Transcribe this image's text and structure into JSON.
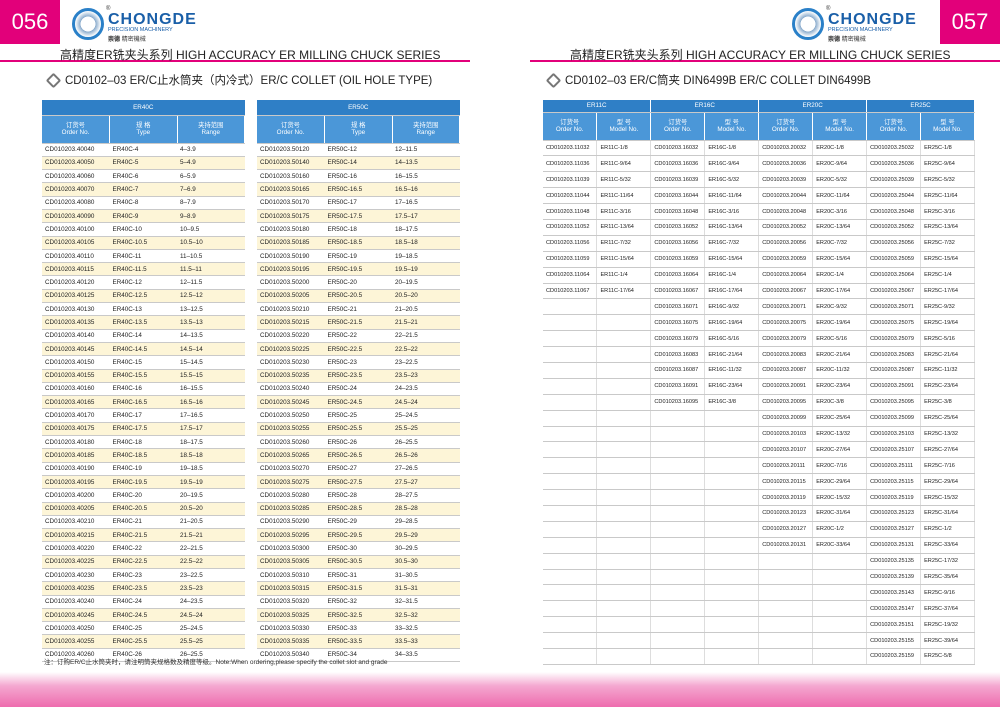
{
  "brand": {
    "name": "CHONGDE",
    "tagline": "PRECISION MACHINERY",
    "zh": "崇德",
    "zh_sub": "精密機械",
    "mark": "®"
  },
  "left": {
    "page_number": "056",
    "header": "高精度ER铣夹头系列  HIGH ACCURACY ER MILLING CHUCK SERIES",
    "section": "CD0102–03 ER/C止水筒夹（内冷式）ER/C COLLET (OIL HOLE TYPE)",
    "columns": [
      {
        "zh": "订货号",
        "en": "Order No."
      },
      {
        "zh": "规 格",
        "en": "Type"
      },
      {
        "zh": "夹持范围",
        "en": "Range"
      }
    ],
    "tables": [
      {
        "title": "ER40C",
        "rows": [
          [
            "CD010203.40040",
            "ER40C-4",
            "4–3.9"
          ],
          [
            "CD010203.40050",
            "ER40C-5",
            "5–4.9"
          ],
          [
            "CD010203.40060",
            "ER40C-6",
            "6–5.9"
          ],
          [
            "CD010203.40070",
            "ER40C-7",
            "7–6.9"
          ],
          [
            "CD010203.40080",
            "ER40C-8",
            "8–7.9"
          ],
          [
            "CD010203.40090",
            "ER40C-9",
            "9–8.9"
          ],
          [
            "CD010203.40100",
            "ER40C-10",
            "10–9.5"
          ],
          [
            "CD010203.40105",
            "ER40C-10.5",
            "10.5–10"
          ],
          [
            "CD010203.40110",
            "ER40C-11",
            "11–10.5"
          ],
          [
            "CD010203.40115",
            "ER40C-11.5",
            "11.5–11"
          ],
          [
            "CD010203.40120",
            "ER40C-12",
            "12–11.5"
          ],
          [
            "CD010203.40125",
            "ER40C-12.5",
            "12.5–12"
          ],
          [
            "CD010203.40130",
            "ER40C-13",
            "13–12.5"
          ],
          [
            "CD010203.40135",
            "ER40C-13.5",
            "13.5–13"
          ],
          [
            "CD010203.40140",
            "ER40C-14",
            "14–13.5"
          ],
          [
            "CD010203.40145",
            "ER40C-14.5",
            "14.5–14"
          ],
          [
            "CD010203.40150",
            "ER40C-15",
            "15–14.5"
          ],
          [
            "CD010203.40155",
            "ER40C-15.5",
            "15.5–15"
          ],
          [
            "CD010203.40160",
            "ER40C-16",
            "16–15.5"
          ],
          [
            "CD010203.40165",
            "ER40C-16.5",
            "16.5–16"
          ],
          [
            "CD010203.40170",
            "ER40C-17",
            "17–16.5"
          ],
          [
            "CD010203.40175",
            "ER40C-17.5",
            "17.5–17"
          ],
          [
            "CD010203.40180",
            "ER40C-18",
            "18–17.5"
          ],
          [
            "CD010203.40185",
            "ER40C-18.5",
            "18.5–18"
          ],
          [
            "CD010203.40190",
            "ER40C-19",
            "19–18.5"
          ],
          [
            "CD010203.40195",
            "ER40C-19.5",
            "19.5–19"
          ],
          [
            "CD010203.40200",
            "ER40C-20",
            "20–19.5"
          ],
          [
            "CD010203.40205",
            "ER40C-20.5",
            "20.5–20"
          ],
          [
            "CD010203.40210",
            "ER40C-21",
            "21–20.5"
          ],
          [
            "CD010203.40215",
            "ER40C-21.5",
            "21.5–21"
          ],
          [
            "CD010203.40220",
            "ER40C-22",
            "22–21.5"
          ],
          [
            "CD010203.40225",
            "ER40C-22.5",
            "22.5–22"
          ],
          [
            "CD010203.40230",
            "ER40C-23",
            "23–22.5"
          ],
          [
            "CD010203.40235",
            "ER40C-23.5",
            "23.5–23"
          ],
          [
            "CD010203.40240",
            "ER40C-24",
            "24–23.5"
          ],
          [
            "CD010203.40245",
            "ER40C-24.5",
            "24.5–24"
          ],
          [
            "CD010203.40250",
            "ER40C-25",
            "25–24.5"
          ],
          [
            "CD010203.40255",
            "ER40C-25.5",
            "25.5–25"
          ],
          [
            "CD010203.40260",
            "ER40C-26",
            "26–25.5"
          ]
        ]
      },
      {
        "title": "ER50C",
        "rows": [
          [
            "CD010203.50120",
            "ER50C-12",
            "12–11.5"
          ],
          [
            "CD010203.50140",
            "ER50C-14",
            "14–13.5"
          ],
          [
            "CD010203.50160",
            "ER50C-16",
            "16–15.5"
          ],
          [
            "CD010203.50165",
            "ER50C-16.5",
            "16.5–16"
          ],
          [
            "CD010203.50170",
            "ER50C-17",
            "17–16.5"
          ],
          [
            "CD010203.50175",
            "ER50C-17.5",
            "17.5–17"
          ],
          [
            "CD010203.50180",
            "ER50C-18",
            "18–17.5"
          ],
          [
            "CD010203.50185",
            "ER50C-18.5",
            "18.5–18"
          ],
          [
            "CD010203.50190",
            "ER50C-19",
            "19–18.5"
          ],
          [
            "CD010203.50195",
            "ER50C-19.5",
            "19.5–19"
          ],
          [
            "CD010203.50200",
            "ER50C-20",
            "20–19.5"
          ],
          [
            "CD010203.50205",
            "ER50C-20.5",
            "20.5–20"
          ],
          [
            "CD010203.50210",
            "ER50C-21",
            "21–20.5"
          ],
          [
            "CD010203.50215",
            "ER50C-21.5",
            "21.5–21"
          ],
          [
            "CD010203.50220",
            "ER50C-22",
            "22–21.5"
          ],
          [
            "CD010203.50225",
            "ER50C-22.5",
            "22.5–22"
          ],
          [
            "CD010203.50230",
            "ER50C-23",
            "23–22.5"
          ],
          [
            "CD010203.50235",
            "ER50C-23.5",
            "23.5–23"
          ],
          [
            "CD010203.50240",
            "ER50C-24",
            "24–23.5"
          ],
          [
            "CD010203.50245",
            "ER50C-24.5",
            "24.5–24"
          ],
          [
            "CD010203.50250",
            "ER50C-25",
            "25–24.5"
          ],
          [
            "CD010203.50255",
            "ER50C-25.5",
            "25.5–25"
          ],
          [
            "CD010203.50260",
            "ER50C-26",
            "26–25.5"
          ],
          [
            "CD010203.50265",
            "ER50C-26.5",
            "26.5–26"
          ],
          [
            "CD010203.50270",
            "ER50C-27",
            "27–26.5"
          ],
          [
            "CD010203.50275",
            "ER50C-27.5",
            "27.5–27"
          ],
          [
            "CD010203.50280",
            "ER50C-28",
            "28–27.5"
          ],
          [
            "CD010203.50285",
            "ER50C-28.5",
            "28.5–28"
          ],
          [
            "CD010203.50290",
            "ER50C-29",
            "29–28.5"
          ],
          [
            "CD010203.50295",
            "ER50C-29.5",
            "29.5–29"
          ],
          [
            "CD010203.50300",
            "ER50C-30",
            "30–29.5"
          ],
          [
            "CD010203.50305",
            "ER50C-30.5",
            "30.5–30"
          ],
          [
            "CD010203.50310",
            "ER50C-31",
            "31–30.5"
          ],
          [
            "CD010203.50315",
            "ER50C-31.5",
            "31.5–31"
          ],
          [
            "CD010203.50320",
            "ER50C-32",
            "32–31.5"
          ],
          [
            "CD010203.50325",
            "ER50C-32.5",
            "32.5–32"
          ],
          [
            "CD010203.50330",
            "ER50C-33",
            "33–32.5"
          ],
          [
            "CD010203.50335",
            "ER50C-33.5",
            "33.5–33"
          ],
          [
            "CD010203.50340",
            "ER50C-34",
            "34–33.5"
          ]
        ]
      }
    ],
    "note": "注：订购ER/C止水筒夹时，请注明筒夹规格数及精度等级。Note:When ordering,please specify the collet slot and grade"
  },
  "right": {
    "page_number": "057",
    "header": "高精度ER铣夹头系列  HIGH ACCURACY ER MILLING CHUCK SERIES",
    "section": "CD0102–03 ER/C筒夹  DIN6499B ER/C COLLET DIN6499B",
    "columns": [
      {
        "zh": "订货号",
        "en": "Order No."
      },
      {
        "zh": "型 号",
        "en": "Model No."
      }
    ],
    "groups": [
      {
        "title": "ER11C",
        "rows": [
          [
            "CD010203.11032",
            "ER11C-1/8"
          ],
          [
            "CD010203.11036",
            "ER11C-9/64"
          ],
          [
            "CD010203.11039",
            "ER11C-5/32"
          ],
          [
            "CD010203.11044",
            "ER11C-11/64"
          ],
          [
            "CD010203.11048",
            "ER11C-3/16"
          ],
          [
            "CD010203.11052",
            "ER11C-13/64"
          ],
          [
            "CD010203.11056",
            "ER11C-7/32"
          ],
          [
            "CD010203.11059",
            "ER11C-15/64"
          ],
          [
            "CD010203.11064",
            "ER11C-1/4"
          ],
          [
            "CD010203.11067",
            "ER11C-17/64"
          ]
        ]
      },
      {
        "title": "ER16C",
        "rows": [
          [
            "CD010203.16032",
            "ER16C-1/8"
          ],
          [
            "CD010203.16036",
            "ER16C-9/64"
          ],
          [
            "CD010203.16039",
            "ER16C-5/32"
          ],
          [
            "CD010203.16044",
            "ER16C-11/64"
          ],
          [
            "CD010203.16048",
            "ER16C-3/16"
          ],
          [
            "CD010203.16052",
            "ER16C-13/64"
          ],
          [
            "CD010203.16056",
            "ER16C-7/32"
          ],
          [
            "CD010203.16059",
            "ER16C-15/64"
          ],
          [
            "CD010203.16064",
            "ER16C-1/4"
          ],
          [
            "CD010203.16067",
            "ER16C-17/64"
          ],
          [
            "CD010203.16071",
            "ER16C-9/32"
          ],
          [
            "CD010203.16075",
            "ER16C-19/64"
          ],
          [
            "CD010203.16079",
            "ER16C-5/16"
          ],
          [
            "CD010203.16083",
            "ER16C-21/64"
          ],
          [
            "CD010203.16087",
            "ER16C-11/32"
          ],
          [
            "CD010203.16091",
            "ER16C-23/64"
          ],
          [
            "CD010203.16095",
            "ER16C-3/8"
          ]
        ]
      },
      {
        "title": "ER20C",
        "rows": [
          [
            "CD010203.20032",
            "ER20C-1/8"
          ],
          [
            "CD010203.20036",
            "ER20C-9/64"
          ],
          [
            "CD010203.20039",
            "ER20C-5/32"
          ],
          [
            "CD010203.20044",
            "ER20C-11/64"
          ],
          [
            "CD010203.20048",
            "ER20C-3/16"
          ],
          [
            "CD010203.20052",
            "ER20C-13/64"
          ],
          [
            "CD010203.20056",
            "ER20C-7/32"
          ],
          [
            "CD010203.20059",
            "ER20C-15/64"
          ],
          [
            "CD010203.20064",
            "ER20C-1/4"
          ],
          [
            "CD010203.20067",
            "ER20C-17/64"
          ],
          [
            "CD010203.20071",
            "ER20C-9/32"
          ],
          [
            "CD010203.20075",
            "ER20C-19/64"
          ],
          [
            "CD010203.20079",
            "ER20C-5/16"
          ],
          [
            "CD010203.20083",
            "ER20C-21/64"
          ],
          [
            "CD010203.20087",
            "ER20C-11/32"
          ],
          [
            "CD010203.20091",
            "ER20C-23/64"
          ],
          [
            "CD010203.20095",
            "ER20C-3/8"
          ],
          [
            "CD010203.20099",
            "ER20C-25/64"
          ],
          [
            "CD010203.20103",
            "ER20C-13/32"
          ],
          [
            "CD010203.20107",
            "ER20C-27/64"
          ],
          [
            "CD010203.20111",
            "ER20C-7/16"
          ],
          [
            "CD010203.20115",
            "ER20C-29/64"
          ],
          [
            "CD010203.20119",
            "ER20C-15/32"
          ],
          [
            "CD010203.20123",
            "ER20C-31/64"
          ],
          [
            "CD010203.20127",
            "ER20C-1/2"
          ],
          [
            "CD010203.20131",
            "ER20C-33/64"
          ]
        ]
      },
      {
        "title": "ER25C",
        "rows": [
          [
            "CD010203.25032",
            "ER25C-1/8"
          ],
          [
            "CD010203.25036",
            "ER25C-9/64"
          ],
          [
            "CD010203.25039",
            "ER25C-5/32"
          ],
          [
            "CD010203.25044",
            "ER25C-11/64"
          ],
          [
            "CD010203.25048",
            "ER25C-3/16"
          ],
          [
            "CD010203.25052",
            "ER25C-13/64"
          ],
          [
            "CD010203.25056",
            "ER25C-7/32"
          ],
          [
            "CD010203.25059",
            "ER25C-15/64"
          ],
          [
            "CD010203.25064",
            "ER25C-1/4"
          ],
          [
            "CD010203.25067",
            "ER25C-17/64"
          ],
          [
            "CD010203.25071",
            "ER25C-9/32"
          ],
          [
            "CD010203.25075",
            "ER25C-19/64"
          ],
          [
            "CD010203.25079",
            "ER25C-5/16"
          ],
          [
            "CD010203.25083",
            "ER25C-21/64"
          ],
          [
            "CD010203.25087",
            "ER25C-11/32"
          ],
          [
            "CD010203.25091",
            "ER25C-23/64"
          ],
          [
            "CD010203.25095",
            "ER25C-3/8"
          ],
          [
            "CD010203.25099",
            "ER25C-25/64"
          ],
          [
            "CD010203.25103",
            "ER25C-13/32"
          ],
          [
            "CD010203.25107",
            "ER25C-27/64"
          ],
          [
            "CD010203.25111",
            "ER25C-7/16"
          ],
          [
            "CD010203.25115",
            "ER25C-29/64"
          ],
          [
            "CD010203.25119",
            "ER25C-15/32"
          ],
          [
            "CD010203.25123",
            "ER25C-31/64"
          ],
          [
            "CD010203.25127",
            "ER25C-1/2"
          ],
          [
            "CD010203.25131",
            "ER25C-33/64"
          ],
          [
            "CD010203.25135",
            "ER25C-17/32"
          ],
          [
            "CD010203.25139",
            "ER25C-35/64"
          ],
          [
            "CD010203.25143",
            "ER25C-9/16"
          ],
          [
            "CD010203.25147",
            "ER25C-37/64"
          ],
          [
            "CD010203.25151",
            "ER25C-19/32"
          ],
          [
            "CD010203.25155",
            "ER25C-39/64"
          ],
          [
            "CD010203.25159",
            "ER25C-5/8"
          ]
        ]
      }
    ]
  }
}
